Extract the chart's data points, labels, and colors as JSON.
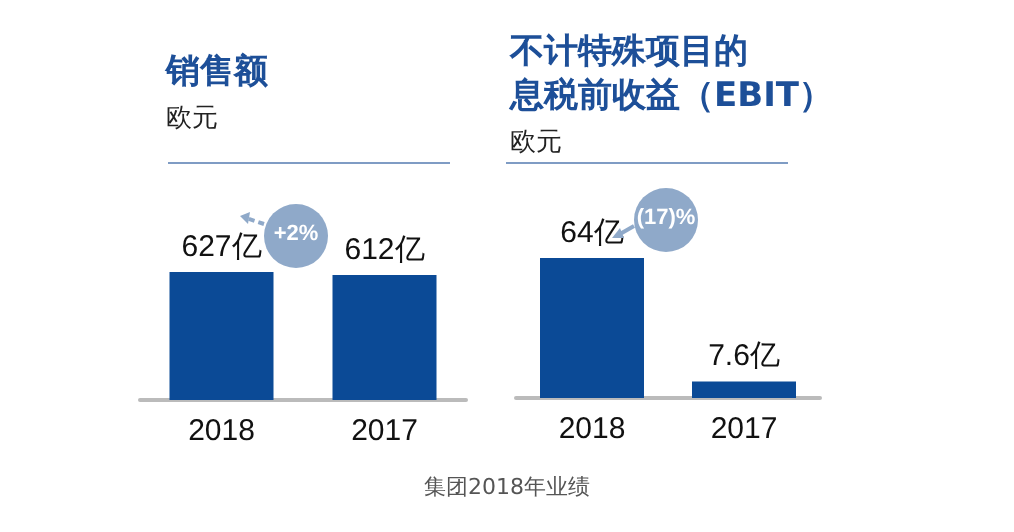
{
  "chart_data": [
    {
      "type": "bar",
      "title": "销售额",
      "subtitle": "欧元",
      "categories": [
        "2018",
        "2017"
      ],
      "series": [
        {
          "color": "#0b4a96",
          "values": [
            627,
            612
          ],
          "value_labels": [
            "627亿",
            "612亿"
          ]
        }
      ],
      "annotations": [
        "+2%",
        "集团2018年业绩"
      ]
    },
    {
      "type": "bar",
      "title": "不计特殊项目的息税前收益（EBIT）",
      "subtitle": "欧元",
      "categories": [
        "2018",
        "2017"
      ],
      "series": [
        {
          "color": "#0b4a96",
          "values": [
            64,
            7.6
          ],
          "value_labels": [
            "64亿",
            "7.6亿"
          ]
        }
      ],
      "annotations": [
        "(17)%"
      ]
    }
  ]
}
